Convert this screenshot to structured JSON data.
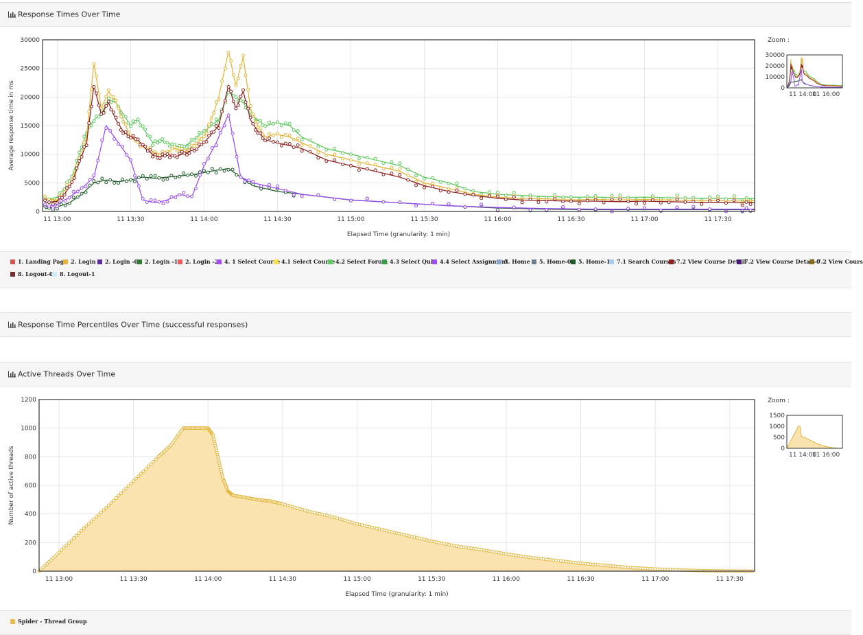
{
  "colors": {
    "thread_fill": "#fbe3b0",
    "thread_line": "#e3b63b",
    "panel_bg": "#f5f5f5"
  },
  "panels": [
    {
      "title": "Response Times Over Time",
      "icon": "bar-chart-icon"
    },
    {
      "title": "Response Time Percentiles Over Time (successful responses)",
      "icon": "bar-chart-icon"
    },
    {
      "title": "Active Threads Over Time",
      "icon": "bar-chart-icon"
    }
  ],
  "zoom_label": "Zoom :",
  "legend_response": [
    {
      "label": "1. Landing Page",
      "color": "#d9534f"
    },
    {
      "label": "2. Login",
      "color": "#e3b63b"
    },
    {
      "label": "2. Login -0",
      "color": "#5b2ca0"
    },
    {
      "label": "2. Login -1",
      "color": "#2f7d32"
    },
    {
      "label": "2. Login -2",
      "color": "#ee5c5c"
    },
    {
      "label": "4. 1 Select Course",
      "color": "#a64bf4"
    },
    {
      "label": "4.1 Select Course",
      "color": "#f5e04a"
    },
    {
      "label": "4.2 Select Forum",
      "color": "#5fca5f"
    },
    {
      "label": "4.3 Select Quiz",
      "color": "#3a9c4a"
    },
    {
      "label": "4.4 Select Assignment",
      "color": "#9a4df5"
    },
    {
      "label": "5. Home",
      "color": "#8aa6c8"
    },
    {
      "label": "5. Home-0",
      "color": "#6a7f92"
    },
    {
      "label": "5. Home-1",
      "color": "#1f5a28"
    },
    {
      "label": "7.1 Search Courses",
      "color": "#a8cdf0"
    },
    {
      "label": "7.2 View Course Detail",
      "color": "#8e2323"
    },
    {
      "label": "7.2 View Course Detail-0",
      "color": "#4a1a7a"
    },
    {
      "label": "7.2 View Cours",
      "color": "#8a6d1c"
    },
    {
      "label": "8. Logout-0",
      "color": "#7a2a2a"
    },
    {
      "label": "8. Logout-1",
      "color": "#cdeef5"
    }
  ],
  "legend_threads": [
    {
      "label": "Spider - Thread Group",
      "color": "#e9b949"
    }
  ],
  "chart_data": [
    {
      "type": "line",
      "title": "Response Times Over Time",
      "xlabel": "Elapsed Time (granularity: 1 min)",
      "ylabel": "Average response time in ms",
      "x_ticks": [
        "11 13:00",
        "11 13:30",
        "11 14:00",
        "11 14:30",
        "11 15:00",
        "11 15:30",
        "11 16:00",
        "11 16:30",
        "11 17:00",
        "11 17:30"
      ],
      "y_ticks": [
        0,
        5000,
        10000,
        15000,
        20000,
        25000,
        30000
      ],
      "xlim_minutes": [
        -6,
        285
      ],
      "ylim": [
        0,
        30000
      ],
      "grid": true,
      "legend": "bottom",
      "series": [
        {
          "name": "4.2 Select Forum",
          "color": "#5fca5f",
          "x": [
            -5,
            0,
            3,
            6,
            9,
            12,
            15,
            18,
            21,
            24,
            27,
            30,
            33,
            36,
            39,
            42,
            45,
            48,
            51,
            54,
            57,
            60,
            63,
            66,
            70,
            73,
            76,
            79,
            82,
            85,
            90,
            95,
            100,
            110,
            120,
            130,
            140,
            150,
            160,
            170,
            180,
            190,
            200,
            210,
            220,
            230,
            240,
            250,
            260,
            270,
            280,
            285
          ],
          "values": [
            2000,
            2500,
            4000,
            6000,
            10000,
            14000,
            16000,
            17000,
            19500,
            19000,
            17000,
            15000,
            16000,
            14000,
            12000,
            12500,
            12000,
            11500,
            11000,
            12000,
            13000,
            14000,
            15000,
            16000,
            21000,
            20000,
            19000,
            17000,
            16000,
            15000,
            15500,
            15000,
            13000,
            11000,
            10000,
            9000,
            8000,
            6000,
            5000,
            3500,
            3000,
            2800,
            2600,
            2500,
            2500,
            2400,
            2500,
            2400,
            2300,
            2300,
            2200,
            2300
          ]
        },
        {
          "name": "2. Login",
          "color": "#e3b63b",
          "x": [
            -5,
            0,
            3,
            6,
            9,
            12,
            15,
            18,
            21,
            24,
            27,
            30,
            33,
            36,
            39,
            42,
            45,
            48,
            51,
            54,
            57,
            60,
            63,
            66,
            70,
            73,
            76,
            79,
            82,
            85,
            90,
            95,
            100,
            110,
            120,
            130,
            140,
            150,
            160,
            170,
            180,
            190,
            200,
            210,
            220,
            230,
            240,
            250,
            260,
            270,
            280,
            285
          ],
          "values": [
            2200,
            2000,
            3500,
            5500,
            9000,
            13000,
            26000,
            18000,
            21000,
            19000,
            16000,
            13000,
            12000,
            11000,
            10500,
            10000,
            10500,
            11000,
            10500,
            11000,
            12000,
            13000,
            16000,
            20000,
            28000,
            22000,
            27000,
            18000,
            15000,
            13000,
            13500,
            13000,
            12000,
            10000,
            9000,
            8000,
            7000,
            5000,
            4000,
            3000,
            2500,
            2300,
            2200,
            2000,
            2100,
            2000,
            2100,
            2000,
            1900,
            1900,
            1800,
            1900
          ]
        },
        {
          "name": "7.2 View Course Detail",
          "color": "#8e2323",
          "x": [
            -5,
            0,
            3,
            6,
            9,
            12,
            15,
            18,
            21,
            24,
            27,
            30,
            33,
            36,
            39,
            42,
            45,
            48,
            51,
            54,
            57,
            60,
            63,
            66,
            70,
            73,
            76,
            79,
            82,
            85,
            90,
            95,
            100,
            110,
            120,
            130,
            140,
            150,
            160,
            170,
            180,
            190,
            200,
            210,
            220,
            230,
            240,
            250,
            260,
            270,
            280,
            285
          ],
          "values": [
            1500,
            1800,
            3000,
            5000,
            8500,
            12000,
            22000,
            17000,
            19000,
            16000,
            14000,
            13000,
            12500,
            11000,
            10000,
            9500,
            10000,
            9500,
            10000,
            10500,
            11000,
            12000,
            13500,
            15000,
            22000,
            18000,
            21000,
            16000,
            14000,
            12500,
            12000,
            11500,
            11000,
            9000,
            8000,
            7000,
            6000,
            4500,
            3500,
            2800,
            2300,
            2000,
            1900,
            1800,
            1800,
            1700,
            1800,
            1700,
            1600,
            1600,
            1500,
            1600
          ]
        },
        {
          "name": "5. Home-1",
          "color": "#1f5a28",
          "x": [
            -5,
            0,
            5,
            10,
            15,
            20,
            25,
            30,
            35,
            40,
            45,
            50,
            55,
            60,
            65,
            70,
            75,
            80,
            90,
            100,
            120,
            140,
            160,
            180,
            200,
            220,
            240,
            260,
            280,
            285
          ],
          "values": [
            500,
            800,
            1500,
            3000,
            5000,
            5500,
            5200,
            5500,
            6000,
            5800,
            6000,
            6200,
            6400,
            6800,
            7200,
            7500,
            6000,
            4500,
            3500,
            3000,
            2000,
            1500,
            1000,
            600,
            400,
            300,
            300,
            300,
            300,
            300
          ]
        },
        {
          "name": "4.4 Select Assignment",
          "color": "#9a4df5",
          "x": [
            -5,
            0,
            5,
            10,
            15,
            20,
            25,
            30,
            35,
            40,
            45,
            50,
            55,
            60,
            65,
            70,
            75,
            80,
            90,
            100,
            120,
            140,
            160,
            180,
            200,
            220,
            240,
            260,
            280,
            285
          ],
          "values": [
            800,
            1200,
            2500,
            4000,
            6000,
            15000,
            12000,
            9000,
            2000,
            1500,
            2000,
            3000,
            2500,
            8000,
            12000,
            17000,
            6000,
            5000,
            4000,
            3000,
            2000,
            1500,
            1000,
            700,
            500,
            400,
            400,
            400,
            400,
            400
          ]
        }
      ]
    },
    {
      "type": "area",
      "title": "Active Threads Over Time",
      "xlabel": "Elapsed Time (granularity: 1 min)",
      "ylabel": "Number of active threads",
      "x_ticks": [
        "11 13:00",
        "11 13:30",
        "11 14:00",
        "11 14:30",
        "11 15:00",
        "11 15:30",
        "11 16:00",
        "11 16:30",
        "11 17:00",
        "11 17:30"
      ],
      "y_ticks": [
        0,
        200,
        400,
        600,
        800,
        1000,
        1200
      ],
      "xlim_minutes": [
        -8,
        280
      ],
      "ylim": [
        0,
        1200
      ],
      "grid": true,
      "legend": "bottom",
      "series": [
        {
          "name": "Spider - Thread Group",
          "color": "#e9b949",
          "x": [
            -8,
            0,
            10,
            20,
            30,
            40,
            45,
            50,
            55,
            60,
            62,
            64,
            66,
            68,
            70,
            75,
            80,
            85,
            90,
            100,
            110,
            120,
            130,
            140,
            150,
            160,
            170,
            180,
            190,
            200,
            210,
            220,
            230,
            240,
            250,
            260,
            270,
            280
          ],
          "values": [
            0,
            130,
            300,
            460,
            630,
            800,
            880,
            1000,
            1000,
            1000,
            950,
            800,
            650,
            560,
            530,
            515,
            500,
            490,
            470,
            420,
            380,
            330,
            290,
            250,
            210,
            175,
            150,
            120,
            95,
            75,
            55,
            40,
            25,
            15,
            8,
            3,
            1,
            0
          ]
        }
      ]
    }
  ],
  "zoom_charts": [
    {
      "y_ticks": [
        0,
        10000,
        20000,
        30000
      ],
      "x_ticks": [
        "11 14:00",
        "11 16:00"
      ]
    },
    {
      "y_ticks": [
        0,
        500,
        1000,
        1500
      ],
      "x_ticks": [
        "11 14:00",
        "11 16:00"
      ]
    }
  ]
}
